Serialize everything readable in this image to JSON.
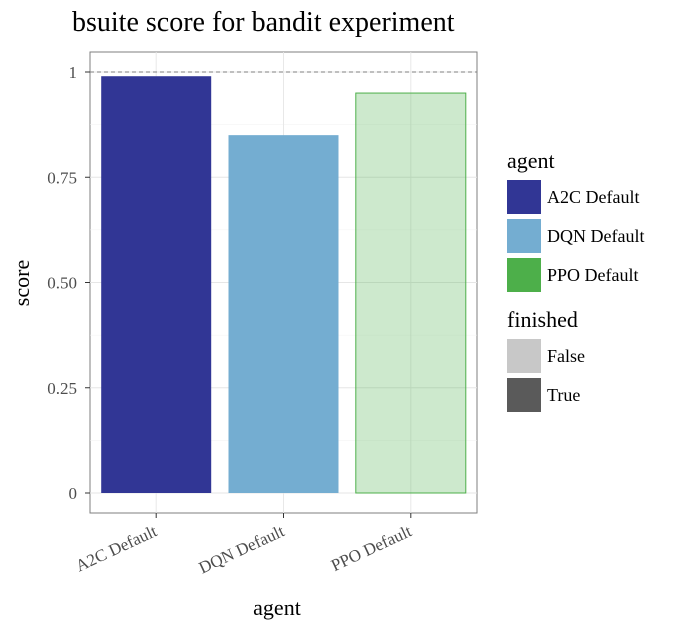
{
  "chart_data": {
    "type": "bar",
    "title": "bsuite score for bandit experiment",
    "xlabel": "agent",
    "ylabel": "score",
    "categories": [
      "A2C Default",
      "DQN Default",
      "PPO Default"
    ],
    "values": [
      0.99,
      0.85,
      0.95
    ],
    "finished": [
      true,
      true,
      false
    ],
    "ylim": [
      0,
      1
    ],
    "yticks": [
      0,
      0.25,
      0.5,
      0.75,
      1
    ],
    "ytick_labels": [
      "0",
      "0.25",
      "0.50",
      "0.75",
      "1"
    ],
    "reference_line": 1,
    "grid": true,
    "legend_position": "right",
    "colors": {
      "A2C Default": "#313695",
      "DQN Default": "#74add1",
      "PPO Default": "#4daf4a"
    },
    "legends": [
      {
        "title": "agent",
        "entries": [
          {
            "label": "A2C Default",
            "color": "#313695"
          },
          {
            "label": "DQN Default",
            "color": "#74add1"
          },
          {
            "label": "PPO Default",
            "color": "#4daf4a"
          }
        ]
      },
      {
        "title": "finished",
        "entries": [
          {
            "label": "False",
            "color": "#c8c8c8"
          },
          {
            "label": "True",
            "color": "#5a5a5a"
          }
        ]
      }
    ]
  }
}
